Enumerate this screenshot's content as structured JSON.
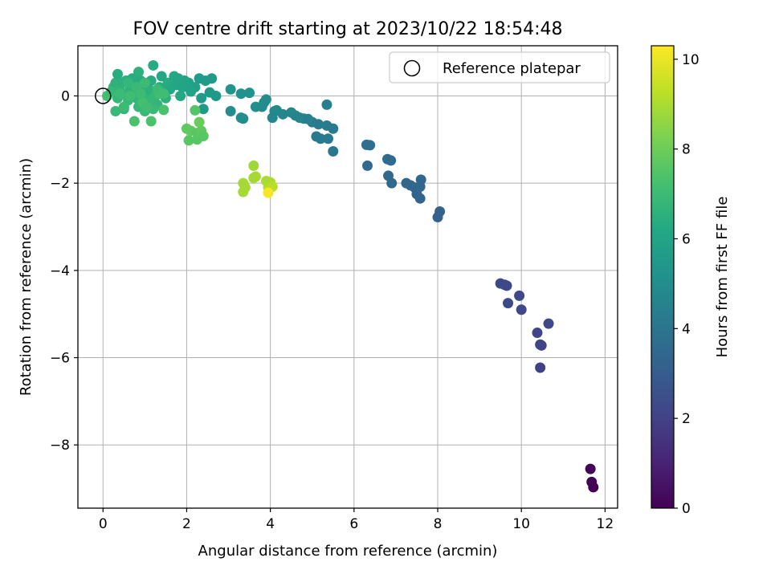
{
  "chart_data": {
    "type": "scatter",
    "title": "FOV centre drift starting at 2023/10/22 18:54:48",
    "xlabel": "Angular distance from reference (arcmin)",
    "ylabel": "Rotation from reference (arcmin)",
    "xlim": [
      -0.6,
      12.3
    ],
    "ylim": [
      -9.45,
      1.15
    ],
    "xticks": [
      0,
      2,
      4,
      6,
      8,
      10,
      12
    ],
    "yticks": [
      0,
      -2,
      -4,
      -6,
      -8
    ],
    "grid": true,
    "legend": {
      "position": "top-right",
      "entries": [
        "Reference platepar"
      ]
    },
    "reference_point": {
      "x": 0,
      "y": 0
    },
    "colorbar": {
      "label": "Hours from first FF file",
      "min": 0,
      "max": 10.3,
      "ticks": [
        0,
        2,
        4,
        6,
        8,
        10
      ],
      "colormap": "viridis"
    },
    "series": [
      {
        "points": [
          [
            11.65,
            -8.55,
            0.1
          ],
          [
            11.68,
            -8.85,
            0.0
          ],
          [
            11.72,
            -8.97,
            0.0
          ],
          [
            9.5,
            -4.3,
            2.3
          ],
          [
            9.6,
            -4.33,
            2.3
          ],
          [
            9.65,
            -4.35,
            2.2
          ],
          [
            9.68,
            -4.75,
            2.3
          ],
          [
            9.95,
            -4.58,
            2.2
          ],
          [
            10.0,
            -4.9,
            2.2
          ],
          [
            10.38,
            -5.43,
            2.1
          ],
          [
            10.45,
            -5.7,
            2.1
          ],
          [
            10.48,
            -5.72,
            2.1
          ],
          [
            10.65,
            -5.22,
            2.2
          ],
          [
            10.45,
            -6.23,
            2.0
          ],
          [
            6.3,
            -1.12,
            3.7
          ],
          [
            6.38,
            -1.13,
            3.7
          ],
          [
            6.32,
            -1.6,
            3.6
          ],
          [
            6.8,
            -1.45,
            3.6
          ],
          [
            6.88,
            -1.48,
            3.6
          ],
          [
            6.82,
            -1.83,
            3.5
          ],
          [
            6.9,
            -2.0,
            3.5
          ],
          [
            7.25,
            -2.0,
            3.4
          ],
          [
            7.35,
            -2.05,
            3.4
          ],
          [
            7.45,
            -2.1,
            3.4
          ],
          [
            7.5,
            -2.25,
            3.3
          ],
          [
            7.58,
            -2.08,
            3.4
          ],
          [
            7.6,
            -1.92,
            3.4
          ],
          [
            7.58,
            -2.35,
            3.3
          ],
          [
            8.05,
            -2.65,
            3.2
          ],
          [
            8.0,
            -2.78,
            3.2
          ],
          [
            5.0,
            -0.6,
            4.3
          ],
          [
            5.15,
            -0.65,
            4.3
          ],
          [
            5.35,
            -0.68,
            4.3
          ],
          [
            5.5,
            -0.75,
            4.2
          ],
          [
            5.35,
            -0.2,
            4.4
          ],
          [
            5.1,
            -0.93,
            4.2
          ],
          [
            5.2,
            -0.98,
            4.2
          ],
          [
            5.38,
            -0.98,
            4.2
          ],
          [
            5.5,
            -1.27,
            4.1
          ],
          [
            4.1,
            -0.35,
            4.8
          ],
          [
            4.15,
            -0.33,
            4.8
          ],
          [
            4.3,
            -0.42,
            4.7
          ],
          [
            4.5,
            -0.38,
            4.7
          ],
          [
            4.6,
            -0.45,
            4.6
          ],
          [
            4.7,
            -0.5,
            4.6
          ],
          [
            4.8,
            -0.52,
            4.6
          ],
          [
            4.9,
            -0.53,
            4.5
          ],
          [
            4.05,
            -0.5,
            4.7
          ],
          [
            3.05,
            0.15,
            5.3
          ],
          [
            3.3,
            0.05,
            5.2
          ],
          [
            3.5,
            0.07,
            5.2
          ],
          [
            3.65,
            -0.25,
            5.1
          ],
          [
            3.8,
            -0.25,
            5.0
          ],
          [
            3.9,
            -0.08,
            5.0
          ],
          [
            3.05,
            -0.35,
            5.0
          ],
          [
            3.3,
            -0.5,
            5.0
          ],
          [
            3.35,
            -0.52,
            5.0
          ],
          [
            3.85,
            -0.15,
            5.0
          ],
          [
            2.3,
            0.4,
            5.6
          ],
          [
            2.45,
            0.35,
            5.6
          ],
          [
            2.6,
            0.4,
            5.6
          ],
          [
            2.55,
            0.08,
            5.5
          ],
          [
            2.7,
            0.0,
            5.5
          ],
          [
            2.35,
            -0.05,
            5.6
          ],
          [
            2.4,
            -0.3,
            5.5
          ],
          [
            2.2,
            0.2,
            5.8
          ],
          [
            2.05,
            0.3,
            5.9
          ],
          [
            1.95,
            0.35,
            6.0
          ],
          [
            2.1,
            0.1,
            5.9
          ],
          [
            0.1,
            0.0,
            7.2
          ],
          [
            0.2,
            0.1,
            6.9
          ],
          [
            0.25,
            0.2,
            6.8
          ],
          [
            0.3,
            0.3,
            6.6
          ],
          [
            0.35,
            0.5,
            6.4
          ],
          [
            0.35,
            -0.05,
            6.8
          ],
          [
            0.4,
            0.15,
            6.7
          ],
          [
            0.45,
            0.3,
            6.6
          ],
          [
            0.5,
            0.05,
            6.7
          ],
          [
            0.55,
            0.35,
            6.5
          ],
          [
            0.3,
            -0.35,
            6.9
          ],
          [
            0.5,
            -0.3,
            6.8
          ],
          [
            0.6,
            -0.1,
            6.9
          ],
          [
            0.65,
            0.2,
            6.6
          ],
          [
            0.7,
            0.4,
            6.4
          ],
          [
            0.75,
            0.15,
            6.6
          ],
          [
            0.8,
            -0.05,
            6.7
          ],
          [
            0.85,
            0.55,
            6.5
          ],
          [
            0.9,
            0.35,
            6.4
          ],
          [
            0.95,
            0.1,
            6.5
          ],
          [
            0.85,
            -0.25,
            6.8
          ],
          [
            1.0,
            -0.35,
            6.9
          ],
          [
            1.05,
            -0.05,
            6.7
          ],
          [
            1.1,
            0.15,
            6.5
          ],
          [
            1.15,
            0.35,
            6.3
          ],
          [
            1.2,
            0.7,
            6.3
          ],
          [
            1.25,
            0.0,
            6.6
          ],
          [
            1.3,
            -0.2,
            6.7
          ],
          [
            1.35,
            0.2,
            6.4
          ],
          [
            1.4,
            0.45,
            6.2
          ],
          [
            1.45,
            0.1,
            6.4
          ],
          [
            1.5,
            -0.05,
            6.6
          ],
          [
            1.55,
            0.3,
            6.3
          ],
          [
            1.6,
            0.15,
            6.2
          ],
          [
            1.7,
            0.45,
            6.2
          ],
          [
            1.75,
            0.25,
            6.1
          ],
          [
            1.8,
            0.4,
            6.1
          ],
          [
            1.9,
            0.2,
            6.0
          ],
          [
            1.85,
            0.0,
            6.2
          ],
          [
            1.2,
            -0.3,
            6.9
          ],
          [
            1.25,
            0.0,
            6.8
          ],
          [
            1.15,
            -0.1,
            6.8
          ],
          [
            0.75,
            -0.58,
            7.3
          ],
          [
            1.15,
            -0.58,
            7.3
          ],
          [
            0.95,
            -0.15,
            7.2
          ],
          [
            1.35,
            0.05,
            7.2
          ],
          [
            1.45,
            -0.32,
            7.3
          ],
          [
            1.05,
            -0.25,
            7.1
          ],
          [
            0.5,
            -0.25,
            7.0
          ],
          [
            0.65,
            0.0,
            7.1
          ],
          [
            0.4,
            0.05,
            7.0
          ],
          [
            0.6,
            0.3,
            6.8
          ],
          [
            0.8,
            0.2,
            6.9
          ],
          [
            1.0,
            0.3,
            7.0
          ],
          [
            1.3,
            0.15,
            7.0
          ],
          [
            1.45,
            0.05,
            7.1
          ],
          [
            0.9,
            0.05,
            7.0
          ],
          [
            2.0,
            -0.75,
            7.7
          ],
          [
            2.1,
            -0.8,
            7.7
          ],
          [
            2.25,
            -0.85,
            7.6
          ],
          [
            2.35,
            -0.8,
            7.7
          ],
          [
            2.4,
            -0.92,
            7.6
          ],
          [
            2.25,
            -1.0,
            7.6
          ],
          [
            2.05,
            -1.02,
            7.6
          ],
          [
            2.2,
            -0.33,
            7.5
          ],
          [
            2.3,
            -0.6,
            7.9
          ],
          [
            3.35,
            -2.0,
            8.9
          ],
          [
            3.4,
            -2.1,
            8.9
          ],
          [
            3.35,
            -2.2,
            8.9
          ],
          [
            3.6,
            -1.6,
            8.8
          ],
          [
            3.65,
            -1.85,
            8.9
          ],
          [
            3.6,
            -1.88,
            8.9
          ],
          [
            3.9,
            -1.95,
            9.0
          ],
          [
            3.95,
            -2.1,
            9.1
          ],
          [
            4.0,
            -1.98,
            9.0
          ],
          [
            4.05,
            -2.08,
            9.2
          ],
          [
            3.95,
            -2.22,
            10.2
          ]
        ]
      }
    ]
  }
}
